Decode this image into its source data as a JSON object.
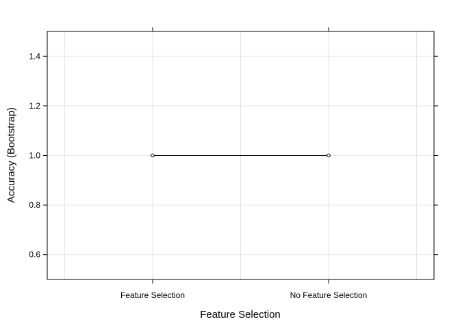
{
  "chart_data": {
    "type": "line",
    "categories": [
      "Feature Selection",
      "No Feature Selection"
    ],
    "series": [
      {
        "values": [
          1.0,
          1.0
        ]
      }
    ],
    "xlabel": "Feature Selection",
    "ylabel": "Accuracy (Bootstrap)",
    "ylim": [
      0.5,
      1.5
    ],
    "yticks": [
      0.6,
      0.8,
      1.0,
      1.2,
      1.4
    ],
    "ytick_labels": [
      "0.6",
      "0.8",
      "1.0",
      "1.2",
      "1.4"
    ],
    "grid": true,
    "colors": {
      "line": "#000000",
      "grid": "#e6e6e6",
      "frame": "#000000"
    }
  }
}
